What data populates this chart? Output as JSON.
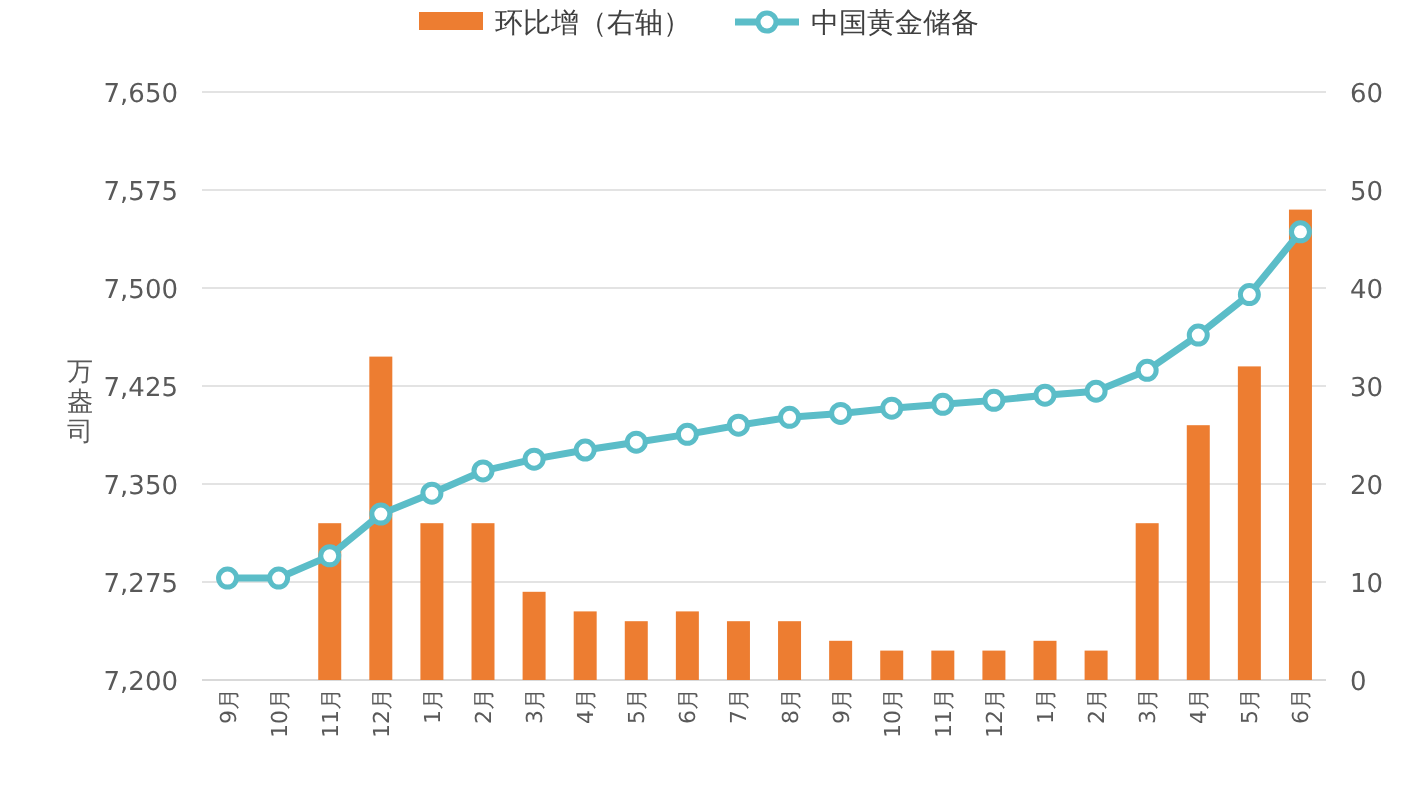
{
  "chart_data": {
    "type": "bar",
    "ylabel": "万盎司",
    "categories": [
      "9月",
      "10月",
      "11月",
      "12月",
      "1月",
      "2月",
      "3月",
      "4月",
      "5月",
      "6月",
      "7月",
      "8月",
      "9月",
      "10月",
      "11月",
      "12月",
      "1月",
      "2月",
      "3月",
      "4月",
      "5月",
      "6月"
    ],
    "series": [
      {
        "name": "环比增（右轴）",
        "axis": "y2",
        "color": "#ed7d31",
        "values": [
          0,
          0,
          16,
          33,
          16,
          16,
          9,
          7,
          6,
          7,
          6,
          6,
          4,
          3,
          3,
          3,
          4,
          3,
          16,
          26,
          32,
          48
        ]
      },
      {
        "name": "中国黄金储备",
        "type": "line",
        "axis": "y",
        "color": "#5bbdc8",
        "values": [
          7278,
          7278,
          7295,
          7327,
          7343,
          7360,
          7369,
          7376,
          7382,
          7388,
          7395,
          7401,
          7404,
          7408,
          7411,
          7414,
          7418,
          7421,
          7437,
          7464,
          7495,
          7543
        ]
      }
    ],
    "ylim": [
      7200,
      7650
    ],
    "yticks": [
      {
        "value": 7200,
        "label": "7,200"
      },
      {
        "value": 7275,
        "label": "7,275"
      },
      {
        "value": 7350,
        "label": "7,350"
      },
      {
        "value": 7425,
        "label": "7,425"
      },
      {
        "value": 7500,
        "label": "7,500"
      },
      {
        "value": 7575,
        "label": "7,575"
      },
      {
        "value": 7650,
        "label": "7,650"
      }
    ],
    "y2lim": [
      0,
      60
    ],
    "y2ticks": [
      0,
      10,
      20,
      30,
      40,
      50,
      60
    ],
    "grid": "y",
    "legend": "top",
    "marker": "circle"
  }
}
